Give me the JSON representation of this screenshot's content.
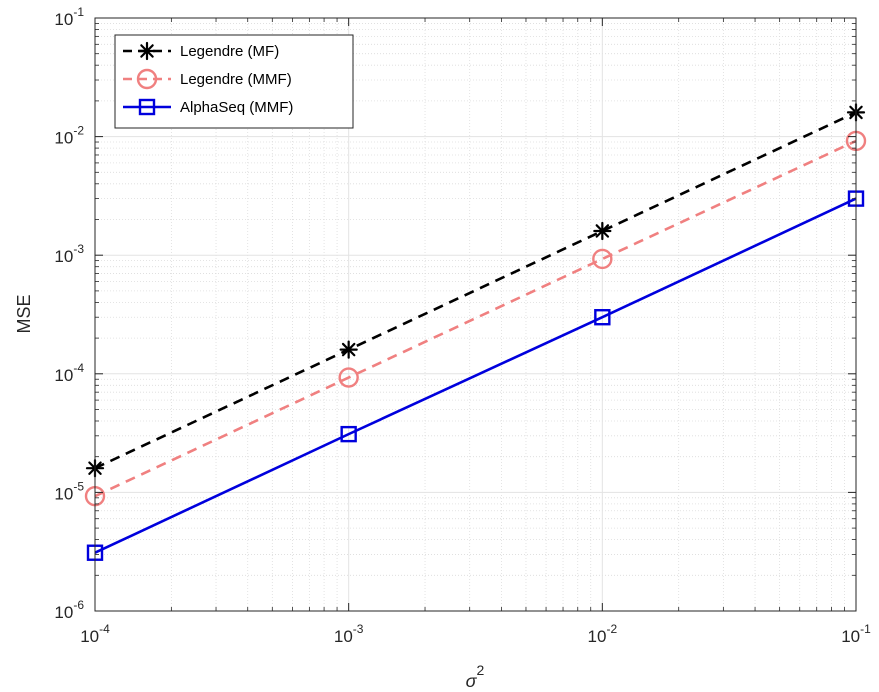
{
  "chart_data": {
    "type": "line",
    "xlabel": "σ",
    "xlabel_superscript": "2",
    "ylabel": "MSE",
    "xscale": "log",
    "yscale": "log",
    "xlim": [
      0.0001,
      0.1
    ],
    "ylim": [
      1e-06,
      0.1
    ],
    "grid": true,
    "minor_grid": true,
    "legend_position": "top-left",
    "x_ticks": [
      {
        "value": 0.0001,
        "base": "10",
        "exp": "-4"
      },
      {
        "value": 0.001,
        "base": "10",
        "exp": "-3"
      },
      {
        "value": 0.01,
        "base": "10",
        "exp": "-2"
      },
      {
        "value": 0.1,
        "base": "10",
        "exp": "-1"
      }
    ],
    "y_ticks": [
      {
        "value": 1e-06,
        "base": "10",
        "exp": "-6"
      },
      {
        "value": 1e-05,
        "base": "10",
        "exp": "-5"
      },
      {
        "value": 0.0001,
        "base": "10",
        "exp": "-4"
      },
      {
        "value": 0.001,
        "base": "10",
        "exp": "-3"
      },
      {
        "value": 0.01,
        "base": "10",
        "exp": "-2"
      },
      {
        "value": 0.1,
        "base": "10",
        "exp": "-1"
      }
    ],
    "x": [
      0.0001,
      0.001,
      0.01,
      0.1
    ],
    "series": [
      {
        "name": "Legendre (MF)",
        "values": [
          1.6e-05,
          0.00016,
          0.0016,
          0.016
        ],
        "color": "#000000",
        "line_style": "dashed",
        "marker": "asterisk"
      },
      {
        "name": "Legendre (MMF)",
        "values": [
          9.3e-06,
          9.3e-05,
          0.00093,
          0.0092
        ],
        "color": "#f08080",
        "line_style": "dashed",
        "marker": "circle"
      },
      {
        "name": "AlphaSeq (MMF)",
        "values": [
          3.1e-06,
          3.1e-05,
          0.0003,
          0.003
        ],
        "color": "#0000dd",
        "line_style": "solid",
        "marker": "square"
      }
    ]
  }
}
